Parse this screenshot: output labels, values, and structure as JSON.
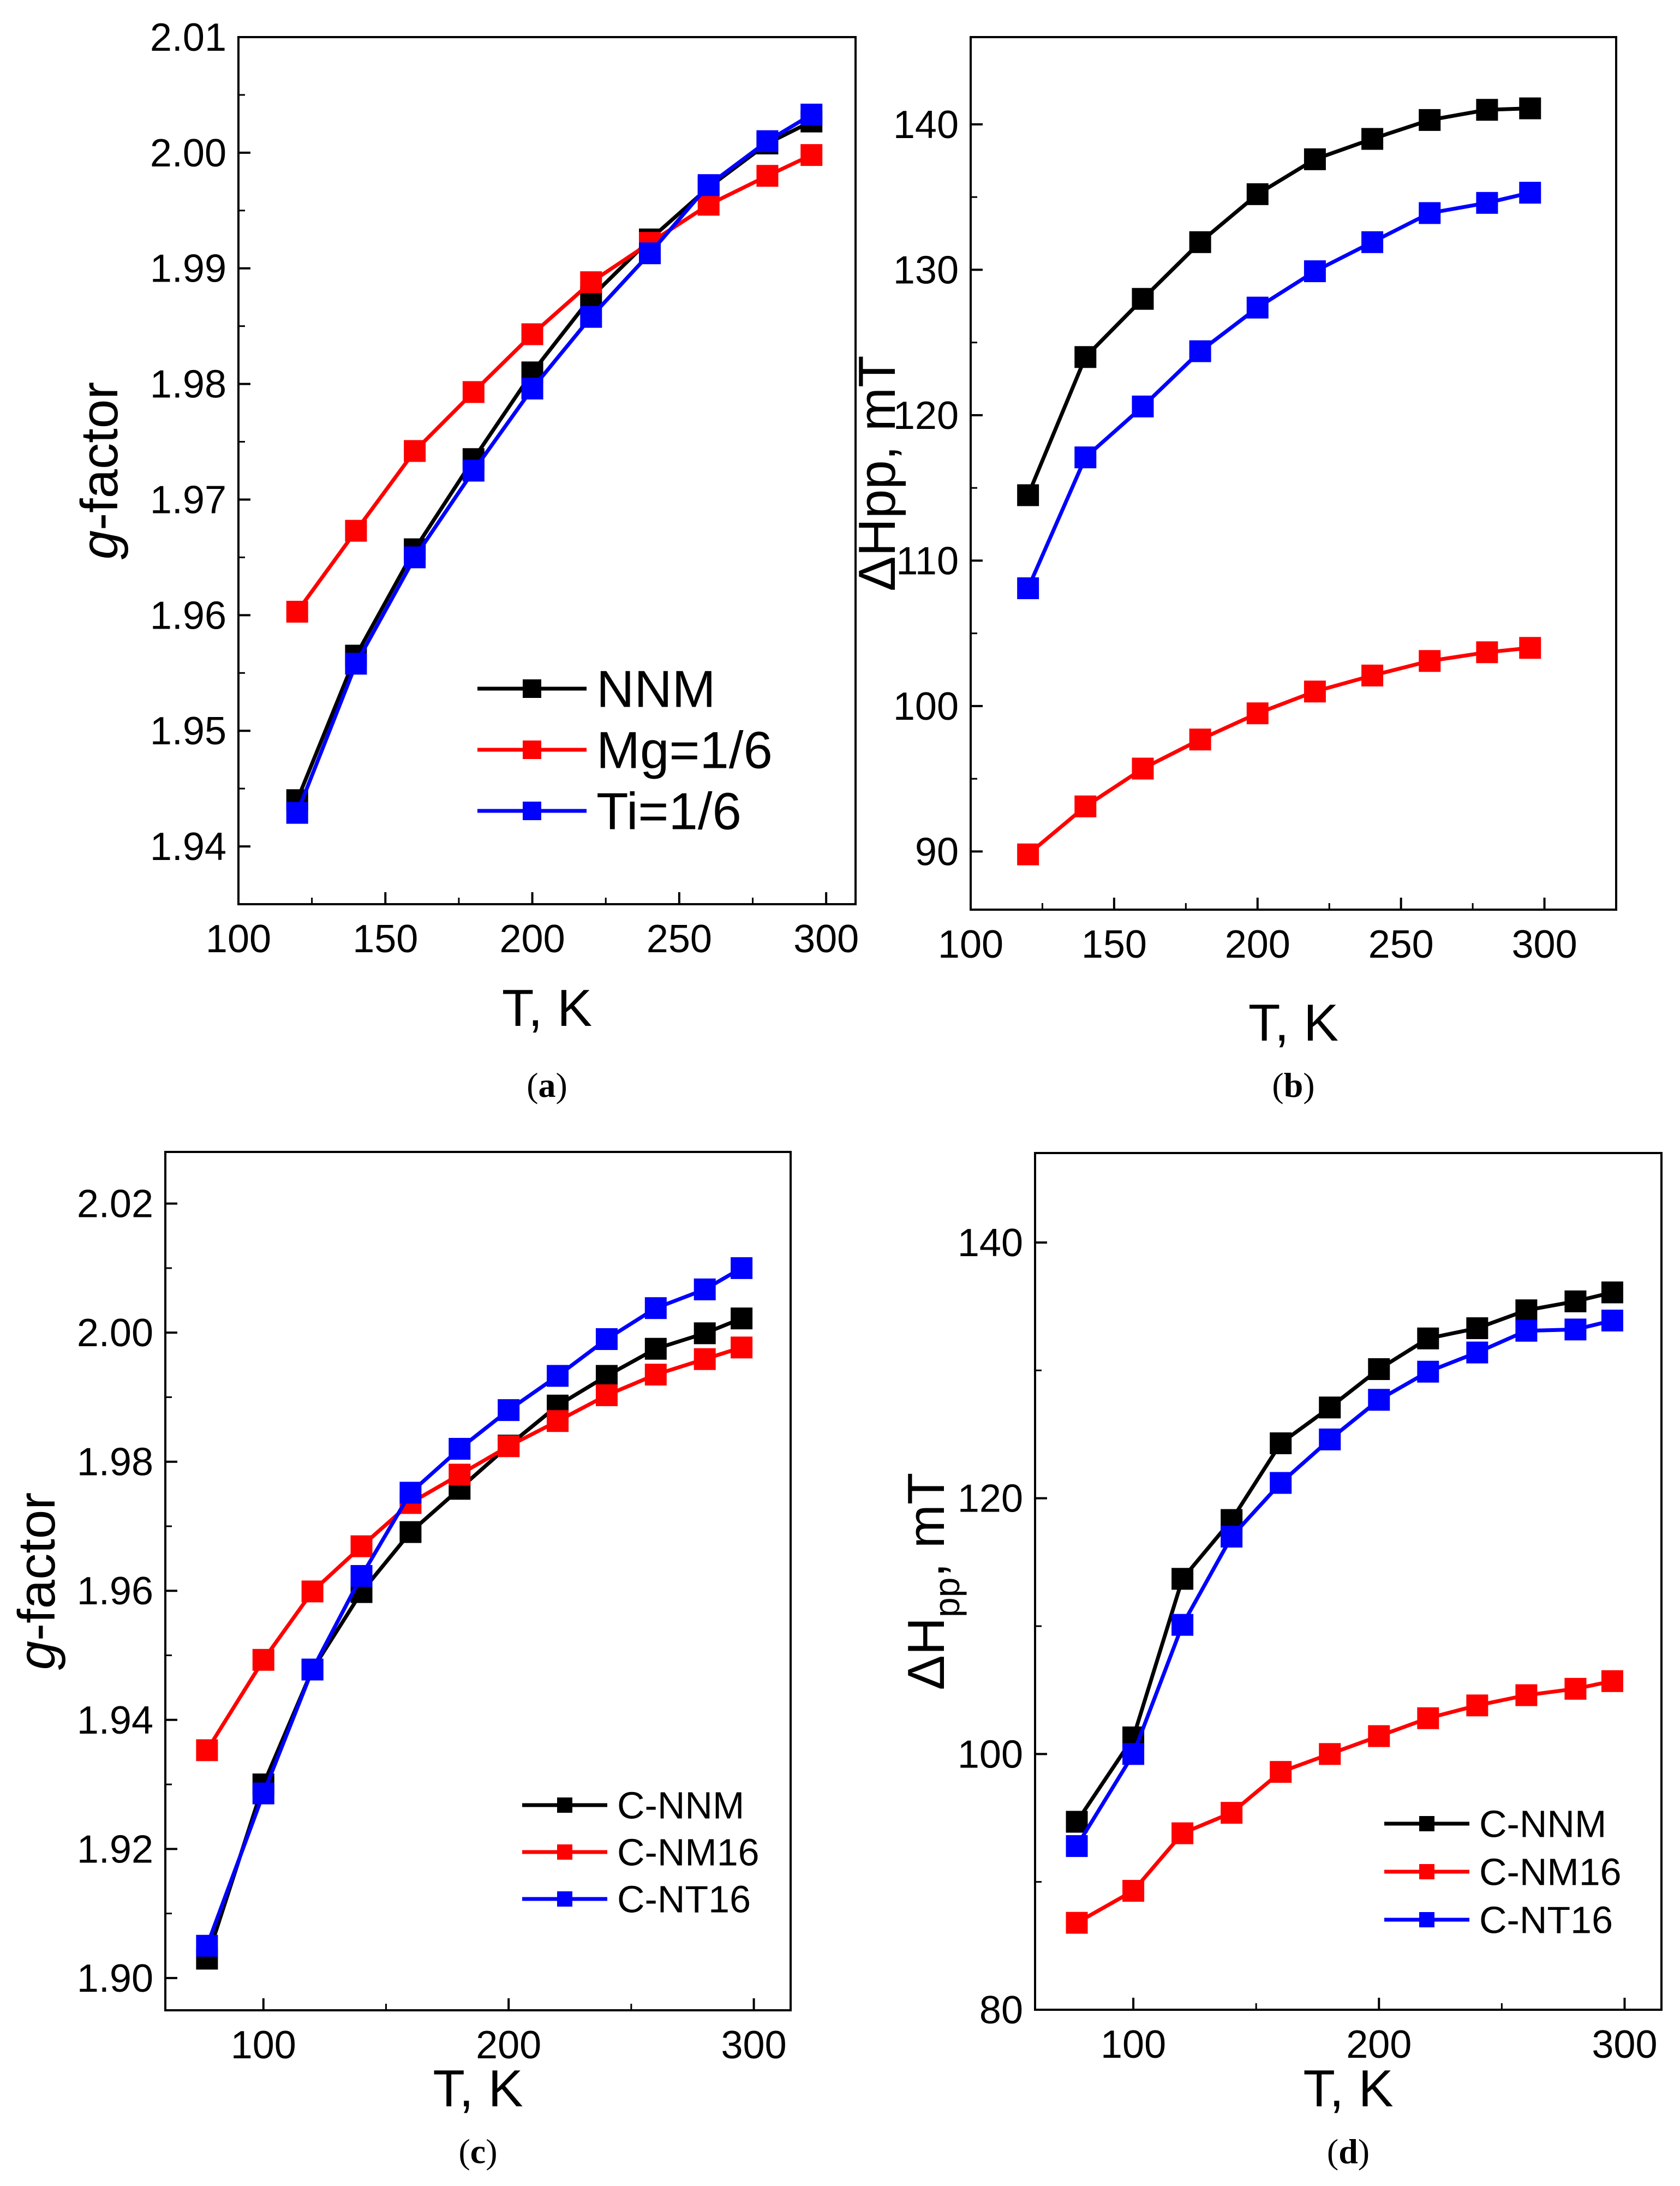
{
  "chart_data": [
    {
      "id": "a",
      "type": "line",
      "caption_letter": "a",
      "xlabel": "T, K",
      "ylabel_italic": "g",
      "ylabel_rest": "-factor",
      "xlim": [
        100,
        310
      ],
      "ylim": [
        1.935,
        2.01
      ],
      "xticks": [
        100,
        150,
        200,
        250,
        300
      ],
      "yticks": [
        1.94,
        1.95,
        1.96,
        1.97,
        1.98,
        1.99,
        2.0,
        2.01
      ],
      "ytick_labels": [
        "1.94",
        "1.95",
        "1.96",
        "1.97",
        "1.98",
        "1.99",
        "2.00",
        "2.01"
      ],
      "legend_position": "bottom-right",
      "series": [
        {
          "name": "NNM",
          "color": "#000000",
          "x": [
            120,
            140,
            160,
            180,
            200,
            220,
            240,
            260,
            280,
            295
          ],
          "y": [
            1.944,
            1.9565,
            1.9657,
            1.9735,
            1.981,
            1.9875,
            1.9925,
            1.997,
            2.0008,
            2.0027
          ]
        },
        {
          "name": "Mg=1/6",
          "color": "#ff0000",
          "x": [
            120,
            140,
            160,
            180,
            200,
            220,
            240,
            260,
            280,
            295
          ],
          "y": [
            1.9603,
            1.9673,
            1.9742,
            1.9793,
            1.9843,
            1.9888,
            1.9922,
            1.9955,
            1.998,
            1.9998
          ]
        },
        {
          "name": "Ti=1/6",
          "color": "#0000ff",
          "x": [
            120,
            140,
            160,
            180,
            200,
            220,
            240,
            260,
            280,
            295
          ],
          "y": [
            1.9429,
            1.9558,
            1.965,
            1.9725,
            1.9796,
            1.9858,
            1.9913,
            1.9972,
            2.001,
            2.0033
          ]
        }
      ]
    },
    {
      "id": "b",
      "type": "line",
      "caption_letter": "b",
      "xlabel": "T, K",
      "ylabel_main": "ΔHpp",
      "ylabel_sub": "",
      "ylabel_tail": ", mT",
      "xlim": [
        100,
        325
      ],
      "ylim": [
        86,
        146
      ],
      "xticks": [
        100,
        150,
        200,
        250,
        300
      ],
      "yticks": [
        90,
        100,
        110,
        120,
        130,
        140
      ],
      "ytick_labels": [
        "90",
        "100",
        "110",
        "120",
        "130",
        "140"
      ],
      "series": [
        {
          "name": "NNM",
          "color": "#000000",
          "x": [
            120,
            140,
            160,
            180,
            200,
            220,
            240,
            260,
            280,
            295
          ],
          "y": [
            114.5,
            124,
            128,
            131.9,
            135.2,
            137.6,
            139,
            140.3,
            141,
            141.1
          ]
        },
        {
          "name": "Ti=1/6",
          "color": "#0000ff",
          "x": [
            120,
            140,
            160,
            180,
            200,
            220,
            240,
            260,
            280,
            295
          ],
          "y": [
            108.1,
            117.1,
            120.6,
            124.4,
            127.4,
            129.9,
            131.9,
            133.9,
            134.6,
            135.3
          ]
        },
        {
          "name": "Mg=1/6",
          "color": "#ff0000",
          "x": [
            120,
            140,
            160,
            180,
            200,
            220,
            240,
            260,
            280,
            295
          ],
          "y": [
            89.8,
            93.1,
            95.7,
            97.7,
            99.5,
            101,
            102.1,
            103.1,
            103.7,
            104
          ]
        }
      ]
    },
    {
      "id": "c",
      "type": "line",
      "caption_letter": "c",
      "xlabel": "T, K",
      "ylabel_italic": "g",
      "ylabel_rest": "-factor",
      "xlim": [
        60,
        315
      ],
      "ylim": [
        1.895,
        2.028
      ],
      "xticks": [
        100,
        200,
        300
      ],
      "yticks": [
        1.9,
        1.92,
        1.94,
        1.96,
        1.98,
        2.0,
        2.02
      ],
      "ytick_labels": [
        "1.90",
        "1.92",
        "1.94",
        "1.96",
        "1.98",
        "2.00",
        "2.02"
      ],
      "legend_position": "bottom-right",
      "series": [
        {
          "name": "C-NNM",
          "color": "#000000",
          "x": [
            77,
            100,
            120,
            140,
            160,
            180,
            200,
            220,
            240,
            260,
            280,
            295
          ],
          "y": [
            1.903,
            1.93,
            1.9478,
            1.9598,
            1.9691,
            1.9758,
            1.9825,
            1.9887,
            1.9933,
            1.9975,
            1.9999,
            2.0022
          ]
        },
        {
          "name": "C-NM16",
          "color": "#ff0000",
          "x": [
            77,
            100,
            120,
            140,
            160,
            180,
            200,
            220,
            240,
            260,
            280,
            295
          ],
          "y": [
            1.9353,
            1.9493,
            1.9599,
            1.9669,
            1.9736,
            1.978,
            1.9824,
            1.9863,
            1.9903,
            1.9935,
            1.9959,
            1.9977
          ]
        },
        {
          "name": "C-NT16",
          "color": "#0000ff",
          "x": [
            77,
            100,
            120,
            140,
            160,
            180,
            200,
            220,
            240,
            260,
            280,
            295
          ],
          "y": [
            1.905,
            1.9286,
            1.9478,
            1.9623,
            1.9752,
            1.982,
            1.988,
            1.9933,
            1.999,
            2.0038,
            2.0067,
            2.01
          ]
        }
      ]
    },
    {
      "id": "d",
      "type": "line",
      "caption_letter": "d",
      "xlabel": "T, K",
      "ylabel_main": "ΔH",
      "ylabel_sub": "pp",
      "ylabel_tail": ", mT",
      "xlim": [
        60,
        315
      ],
      "ylim": [
        80,
        147
      ],
      "xticks": [
        100,
        200,
        300
      ],
      "yticks": [
        80,
        100,
        120,
        140
      ],
      "ytick_labels": [
        "80",
        "100",
        "120",
        "140"
      ],
      "legend_position": "bottom-right",
      "series": [
        {
          "name": "C-NNM",
          "color": "#000000",
          "x": [
            77,
            100,
            120,
            140,
            160,
            180,
            200,
            220,
            240,
            260,
            280,
            295
          ],
          "y": [
            94.7,
            101.3,
            113.7,
            118.3,
            124.3,
            127.1,
            130.1,
            132.5,
            133.3,
            134.7,
            135.4,
            136.1
          ]
        },
        {
          "name": "C-NM16",
          "color": "#ff0000",
          "x": [
            77,
            100,
            120,
            140,
            160,
            180,
            200,
            220,
            240,
            260,
            280,
            295
          ],
          "y": [
            86.8,
            89.3,
            93.8,
            95.4,
            98.6,
            100,
            101.4,
            102.8,
            103.8,
            104.6,
            105.1,
            105.7
          ]
        },
        {
          "name": "C-NT16",
          "color": "#0000ff",
          "x": [
            77,
            100,
            120,
            140,
            160,
            180,
            200,
            220,
            240,
            260,
            280,
            295
          ],
          "y": [
            92.8,
            100,
            110.1,
            117,
            121.2,
            124.6,
            127.7,
            129.9,
            131.4,
            133.1,
            133.2,
            133.9
          ]
        }
      ]
    }
  ]
}
